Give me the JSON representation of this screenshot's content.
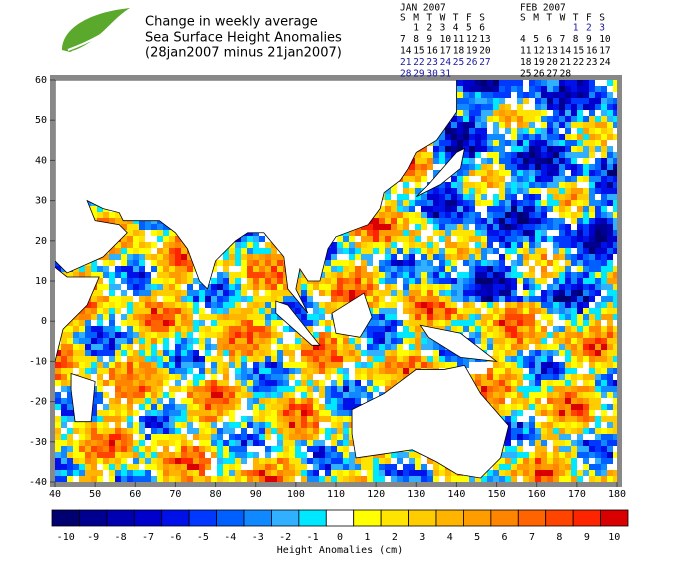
{
  "header": {
    "title": [
      "Change in weekly average",
      "Sea Surface Height Anomalies",
      "(28jan2007 minus 21jan2007)"
    ]
  },
  "calendars": [
    {
      "title": "JAN 2007",
      "weekdays": [
        "S",
        "M",
        "T",
        "W",
        "T",
        "F",
        "S"
      ],
      "weeks": [
        [
          null,
          1,
          2,
          3,
          4,
          5,
          6
        ],
        [
          7,
          8,
          9,
          10,
          11,
          12,
          13
        ],
        [
          14,
          15,
          16,
          17,
          18,
          19,
          20
        ],
        [
          21,
          22,
          23,
          24,
          25,
          26,
          27
        ],
        [
          28,
          29,
          30,
          31,
          null,
          null,
          null
        ]
      ],
      "highlighted_weeks": [
        3,
        4
      ]
    },
    {
      "title": "FEB 2007",
      "weekdays": [
        "S",
        "M",
        "T",
        "W",
        "T",
        "F",
        "S"
      ],
      "weeks": [
        [
          null,
          null,
          null,
          null,
          1,
          2,
          3
        ],
        [
          4,
          5,
          6,
          7,
          8,
          9,
          10
        ],
        [
          11,
          12,
          13,
          14,
          15,
          16,
          17
        ],
        [
          18,
          19,
          20,
          21,
          22,
          23,
          24
        ],
        [
          25,
          26,
          27,
          28,
          null,
          null,
          null
        ]
      ],
      "highlighted_weeks": [
        0
      ]
    }
  ],
  "map": {
    "xlim": [
      40,
      180
    ],
    "xticks": [
      40,
      50,
      60,
      70,
      80,
      90,
      100,
      110,
      120,
      130,
      140,
      150,
      160,
      170,
      180
    ],
    "ylim": [
      -40,
      60
    ],
    "yticks": [
      -40,
      -30,
      -20,
      -10,
      0,
      10,
      20,
      30,
      40,
      50,
      60
    ]
  },
  "colorbar": {
    "label": "Height Anomalies (cm)",
    "values": [
      -10,
      -9,
      -8,
      -7,
      -6,
      -5,
      -4,
      -3,
      -2,
      -1,
      0,
      1,
      2,
      3,
      4,
      5,
      6,
      7,
      8,
      9,
      10
    ],
    "colors": [
      "#000070",
      "#000090",
      "#0000b0",
      "#0000cc",
      "#0010e8",
      "#0038ff",
      "#0060ff",
      "#1088ff",
      "#30b0ff",
      "#00e8ff",
      "#ffffff",
      "#ffff00",
      "#ffe400",
      "#ffcc00",
      "#ffb400",
      "#ff9c00",
      "#ff8400",
      "#ff6400",
      "#ff4400",
      "#ff2400",
      "#d80000"
    ]
  }
}
